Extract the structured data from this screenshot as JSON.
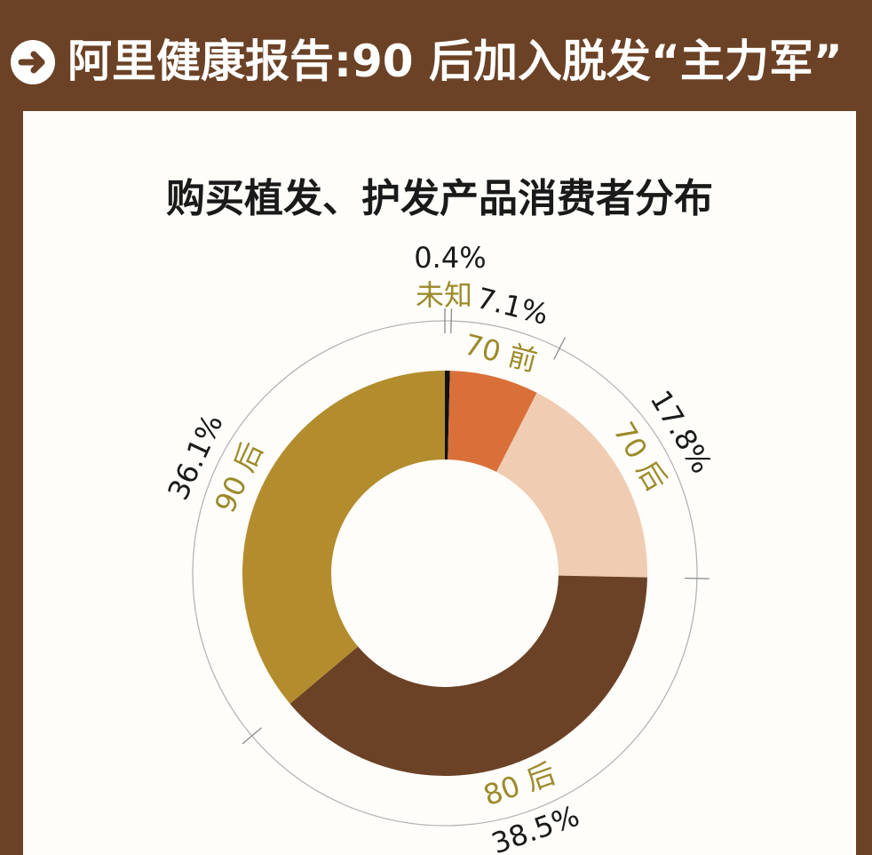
{
  "header": {
    "title": "阿里健康报告:90 后加入脱发“主力军”",
    "icon": "arrow-right-icon"
  },
  "colors": {
    "frame": "#6b4226",
    "card": "#fffdfa",
    "label_gold": "#9c8a2a",
    "value_text": "#1a1a1a"
  },
  "chart_data": {
    "type": "pie",
    "title": "购买植发、护发产品消费者分布",
    "donut": true,
    "series": [
      {
        "name": "未知",
        "value": 0.4,
        "label": "0.4%",
        "color": "#111111"
      },
      {
        "name": "70 前",
        "value": 7.1,
        "label": "7.1%",
        "color": "#d9703a"
      },
      {
        "name": "70 后",
        "value": 17.8,
        "label": "17.8%",
        "color": "#f0ccb2"
      },
      {
        "name": "80 后",
        "value": 38.5,
        "label": "38.5%",
        "color": "#6b4226"
      },
      {
        "name": "90 后",
        "value": 36.1,
        "label": "36.1%",
        "color": "#b38d2d"
      }
    ]
  }
}
